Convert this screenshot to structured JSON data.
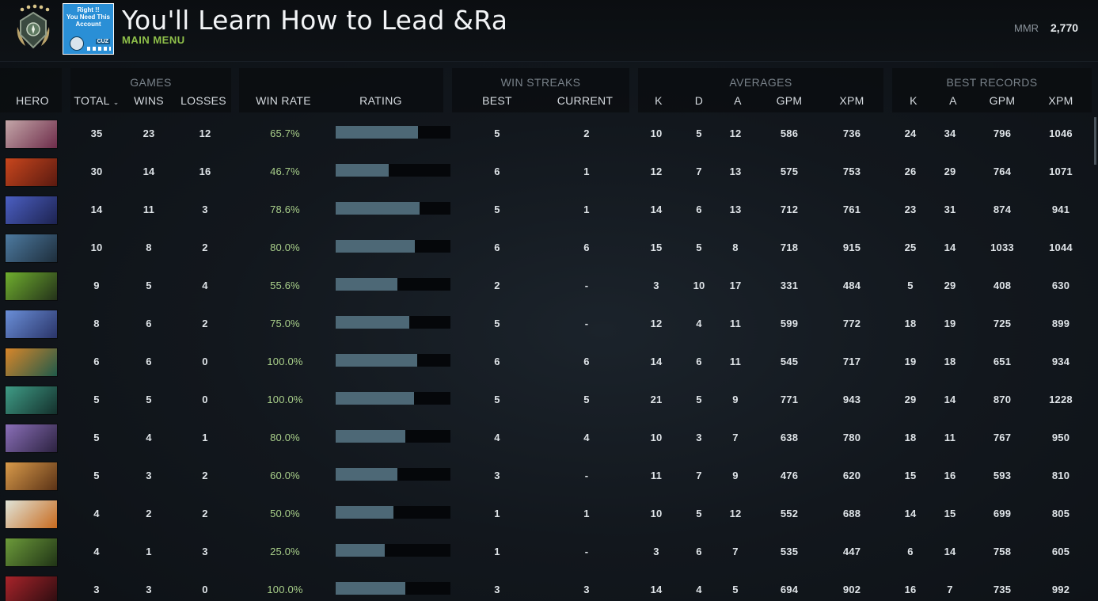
{
  "header": {
    "player_name": "You'll Learn How to Lead &Ra",
    "subtitle": "MAIN MENU",
    "mmr_label": "MMR",
    "mmr_value": "2,770",
    "avatar_text": [
      "Right !!",
      "You Need This",
      "Account"
    ],
    "avatar_tag": "CUZ",
    "rank_icon": "rank-medal-icon"
  },
  "groups": {
    "games": "GAMES",
    "win_streaks": "WIN STREAKS",
    "averages": "AVERAGES",
    "best_records": "BEST RECORDS"
  },
  "columns": {
    "hero": "HERO",
    "total": "TOTAL",
    "wins": "WINS",
    "losses": "LOSSES",
    "win_rate": "WIN RATE",
    "rating": "RATING",
    "best": "BEST",
    "current": "CURRENT",
    "k": "K",
    "d": "D",
    "a": "A",
    "gpm": "GPM",
    "xpm": "XPM",
    "best_k": "K",
    "best_a": "A",
    "best_gpm": "GPM",
    "best_xpm": "XPM"
  },
  "rows": [
    {
      "hero_colors": [
        "#c3a6a8",
        "#6e2c4a"
      ],
      "total": "35",
      "wins": "23",
      "losses": "12",
      "win_rate": "65.7%",
      "rating": 0.72,
      "best": "5",
      "current": "2",
      "k": "10",
      "d": "5",
      "a": "12",
      "gpm": "586",
      "xpm": "736",
      "best_k": "24",
      "best_a": "34",
      "best_gpm": "796",
      "best_xpm": "1046"
    },
    {
      "hero_colors": [
        "#c8461d",
        "#5a1a10"
      ],
      "total": "30",
      "wins": "14",
      "losses": "16",
      "win_rate": "46.7%",
      "rating": 0.46,
      "best": "6",
      "current": "1",
      "k": "12",
      "d": "7",
      "a": "13",
      "gpm": "575",
      "xpm": "753",
      "best_k": "26",
      "best_a": "29",
      "best_gpm": "764",
      "best_xpm": "1071"
    },
    {
      "hero_colors": [
        "#4b5fc2",
        "#1d2350"
      ],
      "total": "14",
      "wins": "11",
      "losses": "3",
      "win_rate": "78.6%",
      "rating": 0.73,
      "best": "5",
      "current": "1",
      "k": "14",
      "d": "6",
      "a": "13",
      "gpm": "712",
      "xpm": "761",
      "best_k": "23",
      "best_a": "31",
      "best_gpm": "874",
      "best_xpm": "941"
    },
    {
      "hero_colors": [
        "#4d7aa0",
        "#1e2e3c"
      ],
      "total": "10",
      "wins": "8",
      "losses": "2",
      "win_rate": "80.0%",
      "rating": 0.69,
      "best": "6",
      "current": "6",
      "k": "15",
      "d": "5",
      "a": "8",
      "gpm": "718",
      "xpm": "915",
      "best_k": "25",
      "best_a": "14",
      "best_gpm": "1033",
      "best_xpm": "1044"
    },
    {
      "hero_colors": [
        "#6fae2e",
        "#24321a"
      ],
      "total": "9",
      "wins": "5",
      "losses": "4",
      "win_rate": "55.6%",
      "rating": 0.54,
      "best": "2",
      "current": "-",
      "k": "3",
      "d": "10",
      "a": "17",
      "gpm": "331",
      "xpm": "484",
      "best_k": "5",
      "best_a": "29",
      "best_gpm": "408",
      "best_xpm": "630"
    },
    {
      "hero_colors": [
        "#6a8fd8",
        "#2a3468"
      ],
      "total": "8",
      "wins": "6",
      "losses": "2",
      "win_rate": "75.0%",
      "rating": 0.64,
      "best": "5",
      "current": "-",
      "k": "12",
      "d": "4",
      "a": "11",
      "gpm": "599",
      "xpm": "772",
      "best_k": "18",
      "best_a": "19",
      "best_gpm": "725",
      "best_xpm": "899"
    },
    {
      "hero_colors": [
        "#d8862a",
        "#1f5a4a"
      ],
      "total": "6",
      "wins": "6",
      "losses": "0",
      "win_rate": "100.0%",
      "rating": 0.71,
      "best": "6",
      "current": "6",
      "k": "14",
      "d": "6",
      "a": "11",
      "gpm": "545",
      "xpm": "717",
      "best_k": "19",
      "best_a": "18",
      "best_gpm": "651",
      "best_xpm": "934"
    },
    {
      "hero_colors": [
        "#3f9c86",
        "#14302c"
      ],
      "total": "5",
      "wins": "5",
      "losses": "0",
      "win_rate": "100.0%",
      "rating": 0.68,
      "best": "5",
      "current": "5",
      "k": "21",
      "d": "5",
      "a": "9",
      "gpm": "771",
      "xpm": "943",
      "best_k": "29",
      "best_a": "14",
      "best_gpm": "870",
      "best_xpm": "1228"
    },
    {
      "hero_colors": [
        "#8a6fb8",
        "#2c2240"
      ],
      "total": "5",
      "wins": "4",
      "losses": "1",
      "win_rate": "80.0%",
      "rating": 0.61,
      "best": "4",
      "current": "4",
      "k": "10",
      "d": "3",
      "a": "7",
      "gpm": "638",
      "xpm": "780",
      "best_k": "18",
      "best_a": "11",
      "best_gpm": "767",
      "best_xpm": "950"
    },
    {
      "hero_colors": [
        "#d89a4a",
        "#5a3216"
      ],
      "total": "5",
      "wins": "3",
      "losses": "2",
      "win_rate": "60.0%",
      "rating": 0.54,
      "best": "3",
      "current": "-",
      "k": "11",
      "d": "7",
      "a": "9",
      "gpm": "476",
      "xpm": "620",
      "best_k": "15",
      "best_a": "16",
      "best_gpm": "593",
      "best_xpm": "810"
    },
    {
      "hero_colors": [
        "#e0e4d8",
        "#c86a1e"
      ],
      "total": "4",
      "wins": "2",
      "losses": "2",
      "win_rate": "50.0%",
      "rating": 0.5,
      "best": "1",
      "current": "1",
      "k": "10",
      "d": "5",
      "a": "12",
      "gpm": "552",
      "xpm": "688",
      "best_k": "14",
      "best_a": "15",
      "best_gpm": "699",
      "best_xpm": "805"
    },
    {
      "hero_colors": [
        "#6c9a3a",
        "#203416"
      ],
      "total": "4",
      "wins": "1",
      "losses": "3",
      "win_rate": "25.0%",
      "rating": 0.43,
      "best": "1",
      "current": "-",
      "k": "3",
      "d": "6",
      "a": "7",
      "gpm": "535",
      "xpm": "447",
      "best_k": "6",
      "best_a": "14",
      "best_gpm": "758",
      "best_xpm": "605"
    },
    {
      "hero_colors": [
        "#a8242a",
        "#2a0c10"
      ],
      "total": "3",
      "wins": "3",
      "losses": "0",
      "win_rate": "100.0%",
      "rating": 0.61,
      "best": "3",
      "current": "3",
      "k": "14",
      "d": "4",
      "a": "5",
      "gpm": "694",
      "xpm": "902",
      "best_k": "16",
      "best_a": "7",
      "best_gpm": "735",
      "best_xpm": "992"
    }
  ]
}
